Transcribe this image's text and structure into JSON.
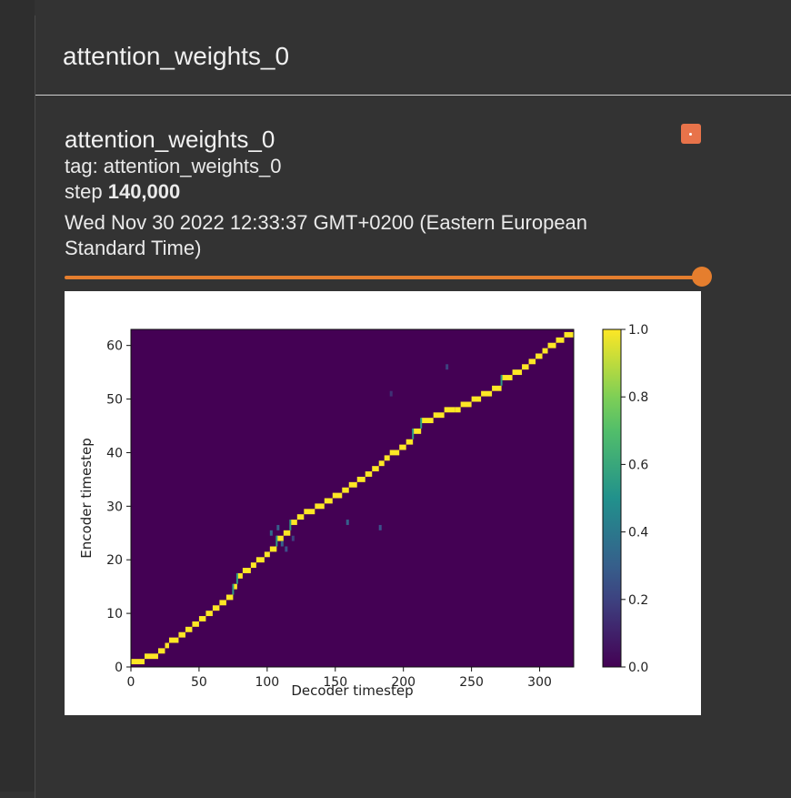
{
  "window": {
    "title": "attention_weights_0"
  },
  "card": {
    "title": "attention_weights_0",
    "tag_line": "tag: attention_weights_0",
    "step_prefix": "step",
    "step_value": "140,000",
    "date": "Wed Nov 30 2022 12:33:37 GMT+0200 (Eastern European Standard Time)"
  },
  "slider": {
    "value_fraction": 1.0
  },
  "colors": {
    "accent": "#e57e2e",
    "pin": "#e8734a",
    "background": "#333333"
  },
  "icons": {
    "pin": "pin-icon"
  },
  "chart_data": {
    "type": "heatmap",
    "xlabel": "Decoder timestep",
    "ylabel": "Encoder timestep",
    "xlim": [
      0,
      325
    ],
    "ylim": [
      0,
      63
    ],
    "xticks": [
      0,
      50,
      100,
      150,
      200,
      250,
      300
    ],
    "yticks": [
      0,
      10,
      20,
      30,
      40,
      50,
      60
    ],
    "colorbar": {
      "min": 0.0,
      "max": 1.0,
      "ticks": [
        "0.0",
        "0.2",
        "0.4",
        "0.6",
        "0.8",
        "1.0"
      ],
      "colormap": "viridis"
    },
    "alignment_path": [
      [
        0,
        1
      ],
      [
        10,
        2
      ],
      [
        20,
        3
      ],
      [
        25,
        4
      ],
      [
        28,
        5
      ],
      [
        35,
        6
      ],
      [
        40,
        7
      ],
      [
        45,
        8
      ],
      [
        50,
        9
      ],
      [
        55,
        10
      ],
      [
        60,
        11
      ],
      [
        65,
        12
      ],
      [
        70,
        13
      ],
      [
        75,
        15
      ],
      [
        78,
        17
      ],
      [
        82,
        18
      ],
      [
        88,
        19
      ],
      [
        92,
        20
      ],
      [
        98,
        21
      ],
      [
        102,
        22
      ],
      [
        107,
        24
      ],
      [
        112,
        25
      ],
      [
        117,
        27
      ],
      [
        122,
        28
      ],
      [
        127,
        29
      ],
      [
        135,
        30
      ],
      [
        142,
        31
      ],
      [
        148,
        32
      ],
      [
        155,
        33
      ],
      [
        160,
        34
      ],
      [
        166,
        35
      ],
      [
        172,
        36
      ],
      [
        177,
        37
      ],
      [
        182,
        38
      ],
      [
        186,
        39
      ],
      [
        190,
        40
      ],
      [
        197,
        41
      ],
      [
        202,
        42
      ],
      [
        207,
        44
      ],
      [
        213,
        46
      ],
      [
        222,
        47
      ],
      [
        230,
        48
      ],
      [
        238,
        48
      ],
      [
        242,
        49
      ],
      [
        250,
        50
      ],
      [
        257,
        51
      ],
      [
        265,
        52
      ],
      [
        272,
        54
      ],
      [
        280,
        55
      ],
      [
        287,
        56
      ],
      [
        292,
        57
      ],
      [
        297,
        58
      ],
      [
        302,
        59
      ],
      [
        306,
        60
      ],
      [
        312,
        61
      ],
      [
        318,
        62
      ]
    ],
    "scattered_points": [
      [
        102,
        25,
        0.35
      ],
      [
        107,
        26,
        0.3
      ],
      [
        110,
        23,
        0.3
      ],
      [
        113,
        22,
        0.25
      ],
      [
        158,
        27,
        0.3
      ],
      [
        182,
        26,
        0.25
      ],
      [
        231,
        56,
        0.2
      ],
      [
        118,
        24,
        0.2
      ],
      [
        190,
        51,
        0.15
      ]
    ]
  }
}
